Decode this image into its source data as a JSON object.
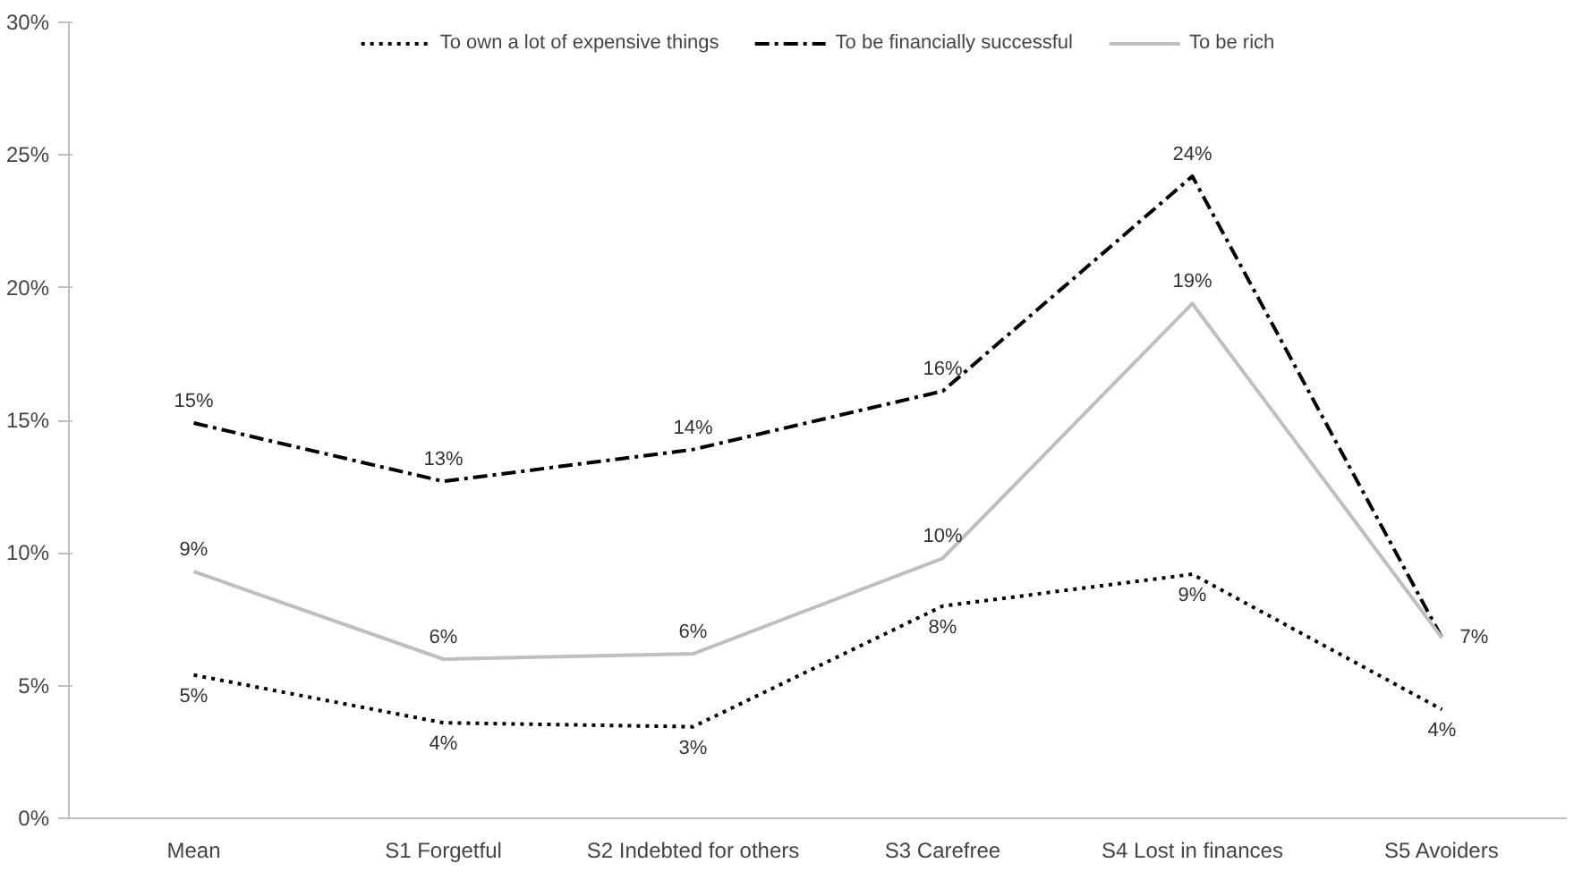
{
  "chart_data": {
    "type": "line",
    "categories": [
      "Mean",
      "S1 Forgetful",
      "S2 Indebted for others",
      "S3 Carefree",
      "S4 Lost in finances",
      "S5 Avoiders"
    ],
    "ylim": [
      0,
      30
    ],
    "yticks": [
      {
        "value": 0,
        "label": "0%"
      },
      {
        "value": 5,
        "label": "5%"
      },
      {
        "value": 10,
        "label": "10%"
      },
      {
        "value": 15,
        "label": "15%"
      },
      {
        "value": 20,
        "label": "20%"
      },
      {
        "value": 25,
        "label": "25%"
      },
      {
        "value": 30,
        "label": "30%"
      }
    ],
    "legend": "top",
    "grid": false,
    "marker": "none",
    "series": [
      {
        "name": "To own a lot of expensive things",
        "color": "#000000",
        "line_style": "dotted",
        "values": [
          5.4,
          3.6,
          3.45,
          8.0,
          9.2,
          4.1
        ],
        "value_labels": [
          "5%",
          "4%",
          "3%",
          "8%",
          "9%",
          "4%"
        ]
      },
      {
        "name": "To be financially successful",
        "color": "#000000",
        "line_style": "dashdot",
        "values": [
          14.9,
          12.7,
          13.9,
          16.1,
          24.2,
          6.8
        ],
        "value_labels": [
          "15%",
          "13%",
          "14%",
          "16%",
          "24%",
          "7%"
        ]
      },
      {
        "name": "To be rich",
        "color": "#bfbfbf",
        "line_style": "solid",
        "values": [
          9.3,
          6.0,
          6.2,
          9.8,
          19.4,
          6.8
        ],
        "value_labels": [
          "9%",
          "6%",
          "6%",
          "10%",
          "19%",
          null
        ]
      }
    ]
  }
}
